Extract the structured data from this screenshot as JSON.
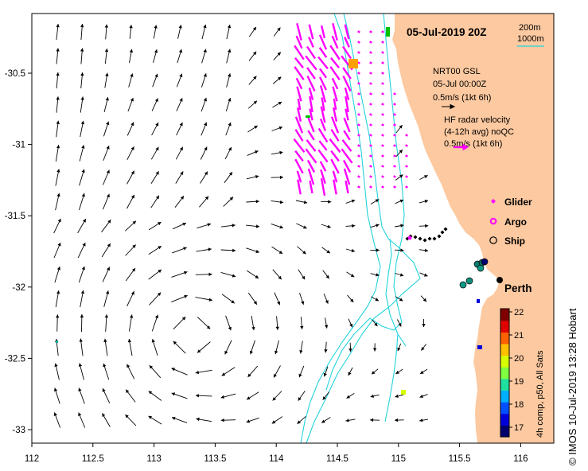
{
  "title": "05-Jul-2019 20Z",
  "depth_legend": {
    "shallow": "200m",
    "deep": "1000m"
  },
  "gsl_legend": {
    "source": "NRT00 GSL",
    "time": "05-Jul 00:00Z",
    "scale": "0.5m/s (1kt 6h)"
  },
  "radar_legend": {
    "line1": "HF radar velocity",
    "line2": "(4-12h avg) noQC",
    "scale": "0.5m/s (1kt 6h)"
  },
  "symbol_legend": {
    "glider": "Glider",
    "argo": "Argo",
    "ship": "Ship"
  },
  "place_label": "Perth",
  "colorbar": {
    "title": "4h comp, p50, All Sats",
    "ticks": [
      "17",
      "18",
      "19",
      "20",
      "21",
      "22"
    ],
    "colors": [
      "#00006f",
      "#0000d8",
      "#0050ff",
      "#00b0ff",
      "#20e0a0",
      "#80ff40",
      "#d8ff00",
      "#ffc000",
      "#ff6000",
      "#e00000",
      "#800000"
    ]
  },
  "x_axis": {
    "ticks": [
      "112",
      "112.5",
      "113",
      "113.5",
      "114",
      "114.5",
      "115",
      "115.5",
      "116"
    ]
  },
  "y_axis": {
    "ticks": [
      "-30.5",
      "-31",
      "-31.5",
      "-32",
      "-32.5",
      "-33"
    ]
  },
  "credit": "© IMOS 10-Jul-2019 13:28 Hobart",
  "colors": {
    "land": "#fdc9a0",
    "isobath": "#22d3dc",
    "radar": "#ff00ff",
    "arrow": "#000000"
  }
}
